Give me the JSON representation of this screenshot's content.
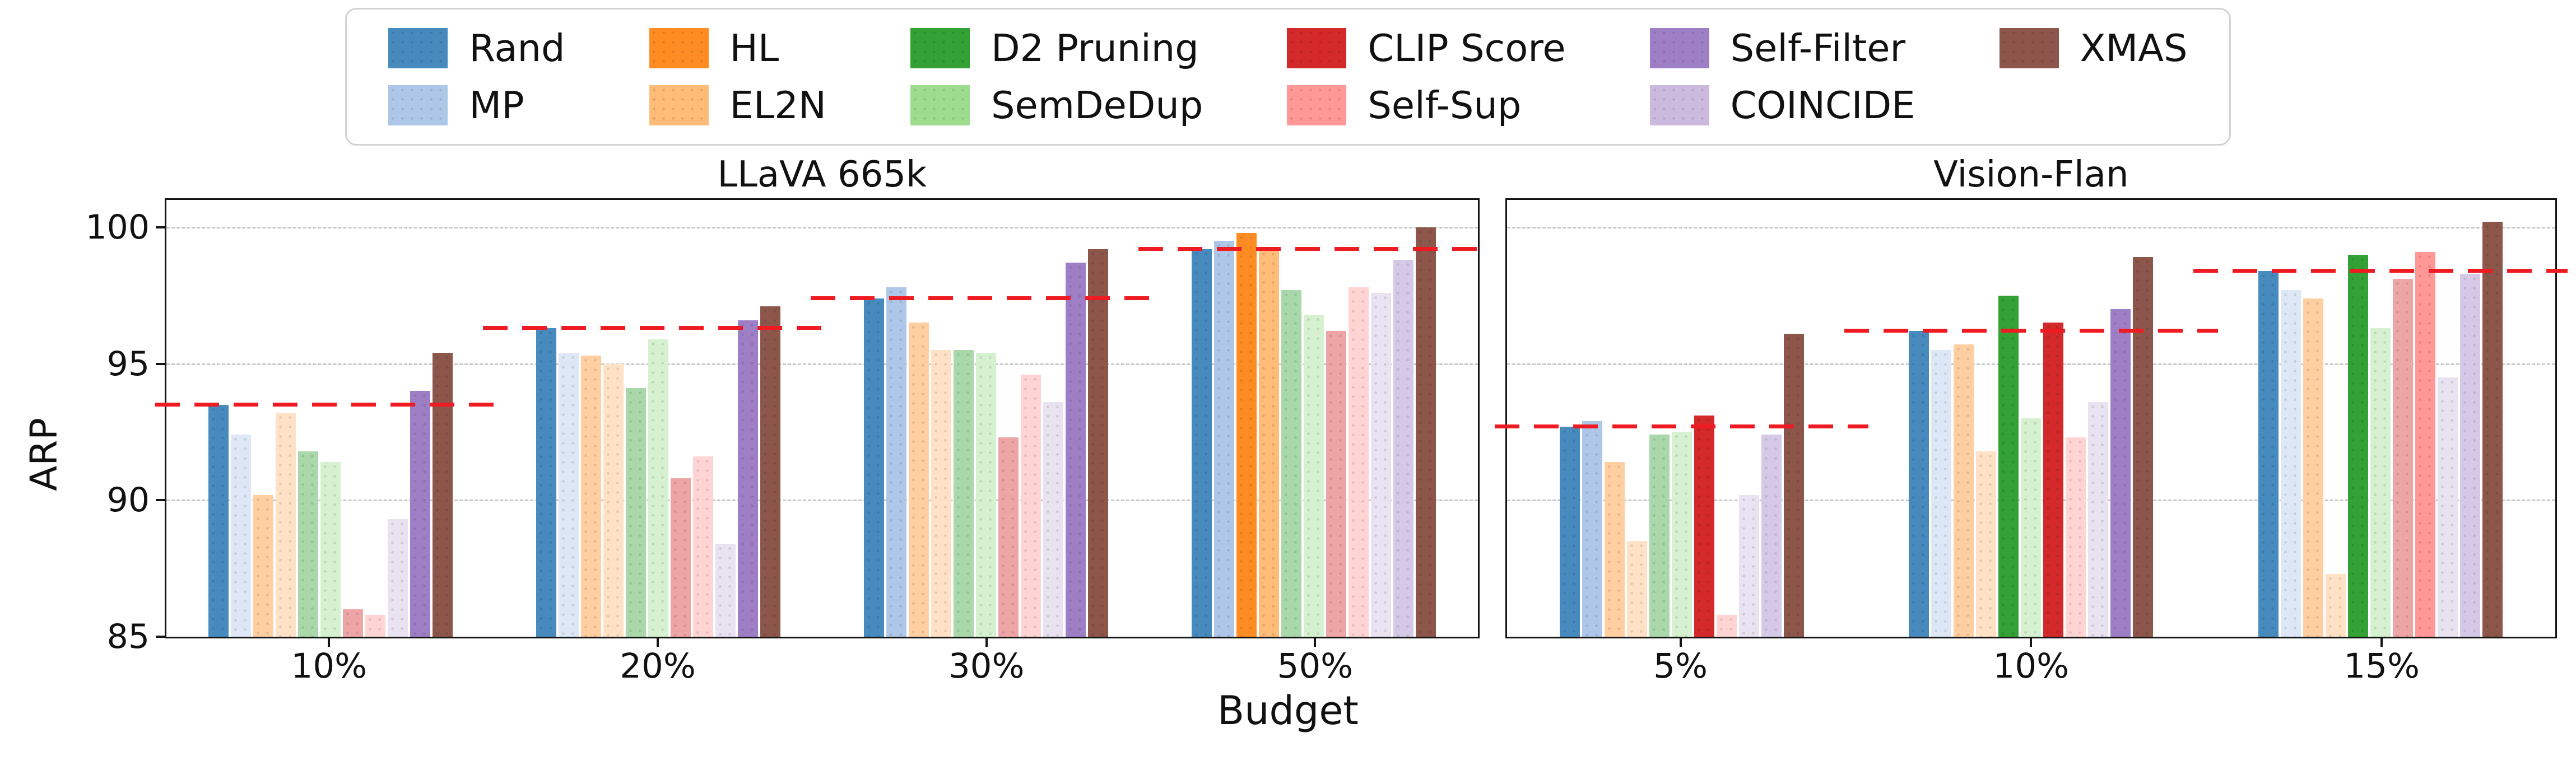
{
  "figure": {
    "xlabel": "Budget",
    "ylabel": "ARP"
  },
  "colors": {
    "red_dashed_line": "#ee1b23",
    "gridline": "#c7c7c7",
    "axis": "#141414"
  },
  "legend": {
    "items": [
      {
        "label": "Rand",
        "color": "#478abd"
      },
      {
        "label": "MP",
        "color": "#aec7e8"
      },
      {
        "label": "HL",
        "color": "#ff8c22"
      },
      {
        "label": "EL2N",
        "color": "#ffbb78"
      },
      {
        "label": "D2 Pruning",
        "color": "#33a135"
      },
      {
        "label": "SemDeDup",
        "color": "#9edd90"
      },
      {
        "label": "CLIP Score",
        "color": "#d3292b"
      },
      {
        "label": "Self-Sup",
        "color": "#ff9896"
      },
      {
        "label": "Self-Filter",
        "color": "#9e7fc6"
      },
      {
        "label": "COINCIDE",
        "color": "#cbbade"
      },
      {
        "label": "XMAS",
        "color": "#8c564b"
      }
    ]
  },
  "chart_data": [
    {
      "type": "bar",
      "title": "LLaVA 665k",
      "xlabel": "Budget",
      "ylabel": "ARP",
      "ylim": [
        85,
        101
      ],
      "yticks": [
        85,
        90,
        95,
        100
      ],
      "yticks_visible": true,
      "grid": true,
      "categories": [
        "10%",
        "20%",
        "30%",
        "50%"
      ],
      "red_dashed_line_note": "horizontal red dashed line per group at Rand value",
      "red_line_values": [
        93.5,
        96.3,
        97.4,
        99.2
      ],
      "series": [
        {
          "name": "Rand",
          "color": "#478abd",
          "values": [
            93.5,
            96.3,
            97.4,
            99.2
          ]
        },
        {
          "name": "MP",
          "color": "#aec7e8",
          "values": [
            92.4,
            95.4,
            97.8,
            99.5
          ]
        },
        {
          "name": "HL",
          "color": "#ff8c22",
          "values": [
            90.2,
            95.3,
            96.5,
            99.8
          ]
        },
        {
          "name": "EL2N",
          "color": "#ffbb78",
          "values": [
            93.2,
            95.0,
            95.5,
            99.2
          ]
        },
        {
          "name": "D2 Pruning",
          "color": "#33a135",
          "values": [
            91.8,
            94.1,
            95.5,
            97.7
          ]
        },
        {
          "name": "SemDeDup",
          "color": "#9edd90",
          "values": [
            91.4,
            95.9,
            95.4,
            96.8
          ]
        },
        {
          "name": "CLIP Score",
          "color": "#d3292b",
          "values": [
            86.0,
            90.8,
            92.3,
            96.2
          ]
        },
        {
          "name": "Self-Sup",
          "color": "#ff9896",
          "values": [
            85.8,
            91.6,
            94.6,
            97.8
          ]
        },
        {
          "name": "COINCIDE",
          "color": "#cbbade",
          "values": [
            89.3,
            88.4,
            93.6,
            97.6
          ]
        },
        {
          "name": "Self-Filter",
          "color": "#9e7fc6",
          "values": [
            94.0,
            96.6,
            98.7,
            98.8
          ]
        },
        {
          "name": "XMAS",
          "color": "#8c564b",
          "values": [
            95.4,
            97.1,
            99.2,
            100.0
          ]
        }
      ]
    },
    {
      "type": "bar",
      "title": "Vision-Flan",
      "xlabel": "Budget",
      "ylabel": "",
      "ylim": [
        85,
        101
      ],
      "yticks": [
        85,
        90,
        95,
        100
      ],
      "yticks_visible": false,
      "grid": true,
      "categories": [
        "5%",
        "10%",
        "15%"
      ],
      "red_dashed_line_note": "horizontal red dashed line per group at Rand value",
      "red_line_values": [
        92.7,
        96.2,
        98.4
      ],
      "series": [
        {
          "name": "Rand",
          "color": "#478abd",
          "values": [
            92.7,
            96.2,
            98.4
          ]
        },
        {
          "name": "MP",
          "color": "#aec7e8",
          "values": [
            92.9,
            95.5,
            97.7
          ]
        },
        {
          "name": "HL",
          "color": "#ff8c22",
          "values": [
            91.4,
            95.7,
            97.4
          ]
        },
        {
          "name": "EL2N",
          "color": "#ffbb78",
          "values": [
            88.5,
            91.8,
            87.3
          ]
        },
        {
          "name": "D2 Pruning",
          "color": "#33a135",
          "values": [
            92.4,
            97.5,
            99.0
          ]
        },
        {
          "name": "SemDeDup",
          "color": "#9edd90",
          "values": [
            92.5,
            93.0,
            96.3
          ]
        },
        {
          "name": "CLIP Score",
          "color": "#d3292b",
          "values": [
            93.1,
            96.5,
            98.1
          ]
        },
        {
          "name": "Self-Sup",
          "color": "#ff9896",
          "values": [
            85.8,
            92.3,
            99.1
          ]
        },
        {
          "name": "COINCIDE",
          "color": "#cbbade",
          "values": [
            90.2,
            93.6,
            94.5
          ]
        },
        {
          "name": "Self-Filter",
          "color": "#9e7fc6",
          "values": [
            92.4,
            97.0,
            98.3
          ]
        },
        {
          "name": "XMAS",
          "color": "#8c564b",
          "values": [
            96.1,
            98.9,
            100.2
          ]
        }
      ]
    }
  ]
}
